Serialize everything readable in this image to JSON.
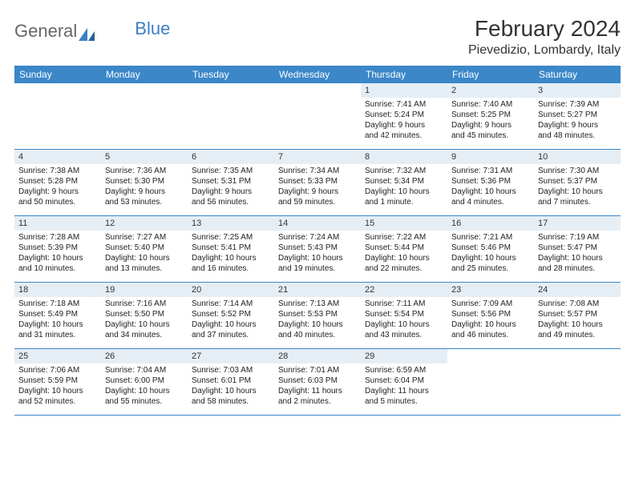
{
  "logo": {
    "part1": "General",
    "part2": "Blue"
  },
  "title": "February 2024",
  "location": "Pievedizio, Lombardy, Italy",
  "colors": {
    "header_bg": "#3b87c8",
    "daynum_bg": "#e6eef5",
    "border": "#3b87c8",
    "text": "#222222",
    "background": "#ffffff"
  },
  "dayNames": [
    "Sunday",
    "Monday",
    "Tuesday",
    "Wednesday",
    "Thursday",
    "Friday",
    "Saturday"
  ],
  "weeks": [
    [
      {
        "empty": true
      },
      {
        "empty": true
      },
      {
        "empty": true
      },
      {
        "empty": true
      },
      {
        "day": "1",
        "sunrise": "Sunrise: 7:41 AM",
        "sunset": "Sunset: 5:24 PM",
        "daylight1": "Daylight: 9 hours",
        "daylight2": "and 42 minutes."
      },
      {
        "day": "2",
        "sunrise": "Sunrise: 7:40 AM",
        "sunset": "Sunset: 5:25 PM",
        "daylight1": "Daylight: 9 hours",
        "daylight2": "and 45 minutes."
      },
      {
        "day": "3",
        "sunrise": "Sunrise: 7:39 AM",
        "sunset": "Sunset: 5:27 PM",
        "daylight1": "Daylight: 9 hours",
        "daylight2": "and 48 minutes."
      }
    ],
    [
      {
        "day": "4",
        "sunrise": "Sunrise: 7:38 AM",
        "sunset": "Sunset: 5:28 PM",
        "daylight1": "Daylight: 9 hours",
        "daylight2": "and 50 minutes."
      },
      {
        "day": "5",
        "sunrise": "Sunrise: 7:36 AM",
        "sunset": "Sunset: 5:30 PM",
        "daylight1": "Daylight: 9 hours",
        "daylight2": "and 53 minutes."
      },
      {
        "day": "6",
        "sunrise": "Sunrise: 7:35 AM",
        "sunset": "Sunset: 5:31 PM",
        "daylight1": "Daylight: 9 hours",
        "daylight2": "and 56 minutes."
      },
      {
        "day": "7",
        "sunrise": "Sunrise: 7:34 AM",
        "sunset": "Sunset: 5:33 PM",
        "daylight1": "Daylight: 9 hours",
        "daylight2": "and 59 minutes."
      },
      {
        "day": "8",
        "sunrise": "Sunrise: 7:32 AM",
        "sunset": "Sunset: 5:34 PM",
        "daylight1": "Daylight: 10 hours",
        "daylight2": "and 1 minute."
      },
      {
        "day": "9",
        "sunrise": "Sunrise: 7:31 AM",
        "sunset": "Sunset: 5:36 PM",
        "daylight1": "Daylight: 10 hours",
        "daylight2": "and 4 minutes."
      },
      {
        "day": "10",
        "sunrise": "Sunrise: 7:30 AM",
        "sunset": "Sunset: 5:37 PM",
        "daylight1": "Daylight: 10 hours",
        "daylight2": "and 7 minutes."
      }
    ],
    [
      {
        "day": "11",
        "sunrise": "Sunrise: 7:28 AM",
        "sunset": "Sunset: 5:39 PM",
        "daylight1": "Daylight: 10 hours",
        "daylight2": "and 10 minutes."
      },
      {
        "day": "12",
        "sunrise": "Sunrise: 7:27 AM",
        "sunset": "Sunset: 5:40 PM",
        "daylight1": "Daylight: 10 hours",
        "daylight2": "and 13 minutes."
      },
      {
        "day": "13",
        "sunrise": "Sunrise: 7:25 AM",
        "sunset": "Sunset: 5:41 PM",
        "daylight1": "Daylight: 10 hours",
        "daylight2": "and 16 minutes."
      },
      {
        "day": "14",
        "sunrise": "Sunrise: 7:24 AM",
        "sunset": "Sunset: 5:43 PM",
        "daylight1": "Daylight: 10 hours",
        "daylight2": "and 19 minutes."
      },
      {
        "day": "15",
        "sunrise": "Sunrise: 7:22 AM",
        "sunset": "Sunset: 5:44 PM",
        "daylight1": "Daylight: 10 hours",
        "daylight2": "and 22 minutes."
      },
      {
        "day": "16",
        "sunrise": "Sunrise: 7:21 AM",
        "sunset": "Sunset: 5:46 PM",
        "daylight1": "Daylight: 10 hours",
        "daylight2": "and 25 minutes."
      },
      {
        "day": "17",
        "sunrise": "Sunrise: 7:19 AM",
        "sunset": "Sunset: 5:47 PM",
        "daylight1": "Daylight: 10 hours",
        "daylight2": "and 28 minutes."
      }
    ],
    [
      {
        "day": "18",
        "sunrise": "Sunrise: 7:18 AM",
        "sunset": "Sunset: 5:49 PM",
        "daylight1": "Daylight: 10 hours",
        "daylight2": "and 31 minutes."
      },
      {
        "day": "19",
        "sunrise": "Sunrise: 7:16 AM",
        "sunset": "Sunset: 5:50 PM",
        "daylight1": "Daylight: 10 hours",
        "daylight2": "and 34 minutes."
      },
      {
        "day": "20",
        "sunrise": "Sunrise: 7:14 AM",
        "sunset": "Sunset: 5:52 PM",
        "daylight1": "Daylight: 10 hours",
        "daylight2": "and 37 minutes."
      },
      {
        "day": "21",
        "sunrise": "Sunrise: 7:13 AM",
        "sunset": "Sunset: 5:53 PM",
        "daylight1": "Daylight: 10 hours",
        "daylight2": "and 40 minutes."
      },
      {
        "day": "22",
        "sunrise": "Sunrise: 7:11 AM",
        "sunset": "Sunset: 5:54 PM",
        "daylight1": "Daylight: 10 hours",
        "daylight2": "and 43 minutes."
      },
      {
        "day": "23",
        "sunrise": "Sunrise: 7:09 AM",
        "sunset": "Sunset: 5:56 PM",
        "daylight1": "Daylight: 10 hours",
        "daylight2": "and 46 minutes."
      },
      {
        "day": "24",
        "sunrise": "Sunrise: 7:08 AM",
        "sunset": "Sunset: 5:57 PM",
        "daylight1": "Daylight: 10 hours",
        "daylight2": "and 49 minutes."
      }
    ],
    [
      {
        "day": "25",
        "sunrise": "Sunrise: 7:06 AM",
        "sunset": "Sunset: 5:59 PM",
        "daylight1": "Daylight: 10 hours",
        "daylight2": "and 52 minutes."
      },
      {
        "day": "26",
        "sunrise": "Sunrise: 7:04 AM",
        "sunset": "Sunset: 6:00 PM",
        "daylight1": "Daylight: 10 hours",
        "daylight2": "and 55 minutes."
      },
      {
        "day": "27",
        "sunrise": "Sunrise: 7:03 AM",
        "sunset": "Sunset: 6:01 PM",
        "daylight1": "Daylight: 10 hours",
        "daylight2": "and 58 minutes."
      },
      {
        "day": "28",
        "sunrise": "Sunrise: 7:01 AM",
        "sunset": "Sunset: 6:03 PM",
        "daylight1": "Daylight: 11 hours",
        "daylight2": "and 2 minutes."
      },
      {
        "day": "29",
        "sunrise": "Sunrise: 6:59 AM",
        "sunset": "Sunset: 6:04 PM",
        "daylight1": "Daylight: 11 hours",
        "daylight2": "and 5 minutes."
      },
      {
        "empty": true
      },
      {
        "empty": true
      }
    ]
  ]
}
